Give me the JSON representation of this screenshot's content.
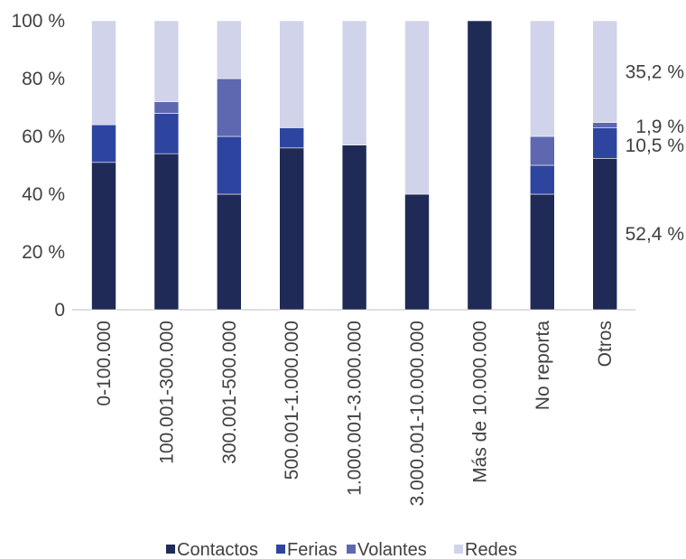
{
  "chart_data": {
    "type": "bar",
    "stacked": true,
    "categories": [
      "0-100.000",
      "100.001-300.000",
      "300.001-500.000",
      "500.001-1.000.000",
      "1.000.001-3.000.000",
      "3.000.001-10.000.000",
      "Más de 10.000.000",
      "No reporta",
      "Otros"
    ],
    "series": [
      {
        "name": "Contactos",
        "color": "#1f2a56",
        "values": [
          51,
          54,
          40,
          56,
          57,
          40,
          100,
          40,
          52.4
        ]
      },
      {
        "name": "Ferias",
        "color": "#2e45a0",
        "values": [
          13,
          14,
          20,
          7,
          0,
          0,
          0,
          10,
          10.5
        ]
      },
      {
        "name": "Volantes",
        "color": "#5d68b0",
        "values": [
          0,
          4,
          20,
          0,
          0,
          0,
          0,
          10,
          1.9
        ]
      },
      {
        "name": "Redes",
        "color": "#d1d3ea",
        "values": [
          36,
          28,
          20,
          37,
          43,
          60,
          0,
          40,
          35.2
        ]
      }
    ],
    "yticks": [
      "0",
      "20 %",
      "40 %",
      "60 %",
      "80 %",
      "100 %"
    ],
    "ylim": [
      0,
      100
    ],
    "data_labels": {
      "category": "Otros",
      "labels": [
        "52,4 %",
        "10,5 %",
        "1,9 %",
        "35,2 %"
      ]
    },
    "legend": "bottom",
    "grid": false
  }
}
